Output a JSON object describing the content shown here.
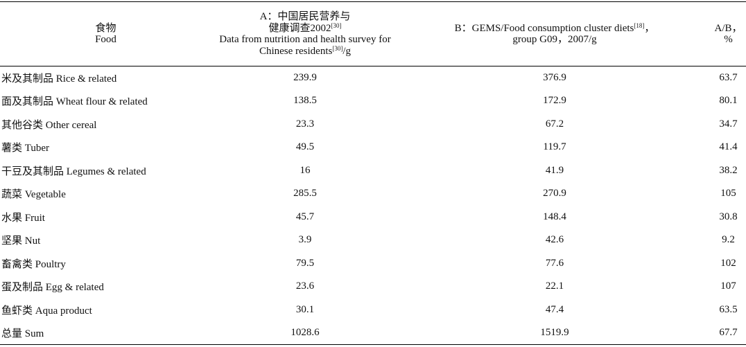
{
  "table": {
    "header": [
      [
        [
          {
            "text": "食物"
          }
        ],
        [
          {
            "text": "Food"
          }
        ]
      ],
      [
        [
          {
            "text": "A：中国居民营养与"
          }
        ],
        [
          {
            "text": "健康调查2002"
          },
          {
            "text": "[30]",
            "sup": true
          }
        ],
        [
          {
            "text": "Data from nutrition and health survey for"
          }
        ],
        [
          {
            "text": "Chinese residents"
          },
          {
            "text": "[30]",
            "sup": true
          },
          {
            "text": "/g"
          }
        ]
      ],
      [
        [
          {
            "text": "B：GEMS/Food consumption cluster diets"
          },
          {
            "text": "[18]",
            "sup": true
          },
          {
            "text": "，"
          }
        ],
        [
          {
            "text": "group G09，2007/g"
          }
        ]
      ],
      [
        [
          {
            "text": "A/B，%"
          }
        ]
      ]
    ],
    "rows": [
      [
        "米及其制品 Rice & related",
        239.9,
        376.9,
        63.7
      ],
      [
        "面及其制品 Wheat flour & related",
        138.5,
        172.9,
        80.1
      ],
      [
        "其他谷类 Other cereal",
        23.3,
        67.2,
        34.7
      ],
      [
        "薯类 Tuber",
        49.5,
        119.7,
        41.4
      ],
      [
        "干豆及其制品 Legumes & related",
        16,
        41.9,
        38.2
      ],
      [
        "蔬菜 Vegetable",
        285.5,
        270.9,
        105
      ],
      [
        "水果 Fruit",
        45.7,
        148.4,
        30.8
      ],
      [
        "坚果 Nut",
        3.9,
        42.6,
        9.2
      ],
      [
        "畜禽类 Poultry",
        79.5,
        77.6,
        102
      ],
      [
        "蛋及制品 Egg & related",
        23.6,
        22.1,
        107
      ],
      [
        "鱼虾类 Aqua product",
        30.1,
        47.4,
        63.5
      ],
      [
        "总量 Sum",
        1028.6,
        1519.9,
        67.7
      ]
    ]
  }
}
